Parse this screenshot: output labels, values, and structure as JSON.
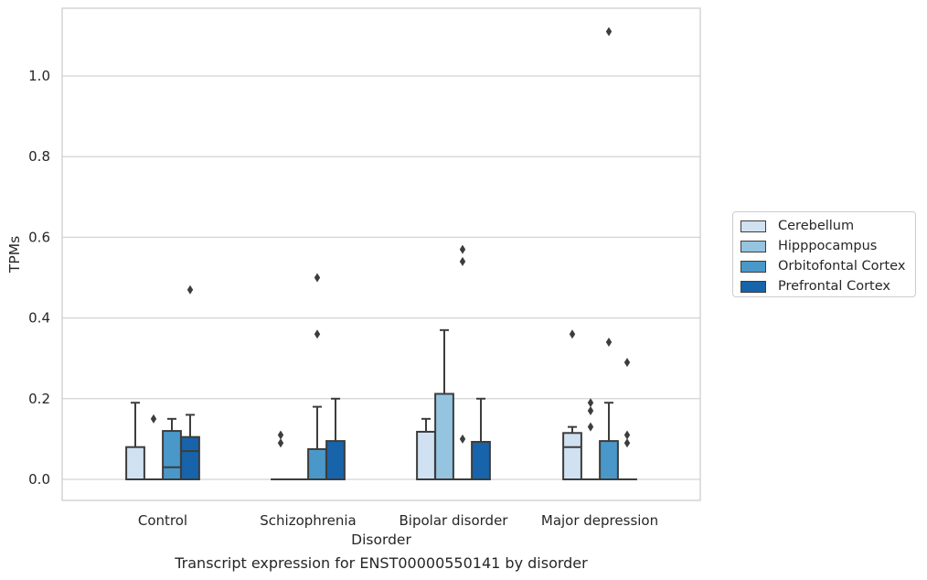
{
  "caption": "Transcript expression for ENST00000550141 by disorder",
  "chart_data": {
    "type": "box",
    "xlabel": "Disorder",
    "ylabel": "TPMs",
    "ylim": [
      -0.055,
      1.177
    ],
    "yticks": [
      "0.0",
      "0.2",
      "0.4",
      "0.6",
      "0.8",
      "1.0"
    ],
    "grid": "horizontal",
    "legend_position": "right",
    "categories": [
      "Control",
      "Schizophrenia",
      "Bipolar disorder",
      "Major depression"
    ],
    "series": [
      {
        "name": "Cerebellum",
        "color": "#d0e1f2",
        "boxes": [
          {
            "q1": 0,
            "median": 0,
            "q3": 0.08,
            "whisker_low": 0,
            "whisker_high": 0.19,
            "outliers": []
          },
          {
            "q1": 0,
            "median": 0,
            "q3": 0,
            "whisker_low": 0,
            "whisker_high": 0,
            "outliers": [
              0.09,
              0.11
            ]
          },
          {
            "q1": 0,
            "median": 0,
            "q3": 0.118,
            "whisker_low": 0,
            "whisker_high": 0.15,
            "outliers": []
          },
          {
            "q1": 0,
            "median": 0.08,
            "q3": 0.115,
            "whisker_low": 0,
            "whisker_high": 0.13,
            "outliers": [
              0.36
            ]
          }
        ]
      },
      {
        "name": "Hipppocampus",
        "color": "#94c4df",
        "boxes": [
          {
            "q1": 0,
            "median": 0,
            "q3": 0,
            "whisker_low": 0,
            "whisker_high": 0,
            "outliers": [
              0.15
            ]
          },
          {
            "q1": 0,
            "median": 0,
            "q3": 0,
            "whisker_low": 0,
            "whisker_high": 0,
            "outliers": []
          },
          {
            "q1": 0,
            "median": 0,
            "q3": 0.212,
            "whisker_low": 0,
            "whisker_high": 0.37,
            "outliers": []
          },
          {
            "q1": 0,
            "median": 0,
            "q3": 0,
            "whisker_low": 0,
            "whisker_high": 0,
            "outliers": [
              0.13,
              0.17,
              0.19
            ]
          }
        ]
      },
      {
        "name": "Orbitofontal Cortex",
        "color": "#4a98c9",
        "boxes": [
          {
            "q1": 0,
            "median": 0.03,
            "q3": 0.12,
            "whisker_low": 0,
            "whisker_high": 0.15,
            "outliers": []
          },
          {
            "q1": 0,
            "median": 0,
            "q3": 0.075,
            "whisker_low": 0,
            "whisker_high": 0.18,
            "outliers": [
              0.36,
              0.5
            ]
          },
          {
            "q1": 0,
            "median": 0,
            "q3": 0,
            "whisker_low": 0,
            "whisker_high": 0,
            "outliers": [
              0.1,
              0.54,
              0.57
            ]
          },
          {
            "q1": 0,
            "median": 0,
            "q3": 0.095,
            "whisker_low": 0,
            "whisker_high": 0.19,
            "outliers": [
              0.34,
              1.11
            ]
          }
        ]
      },
      {
        "name": "Prefrontal Cortex",
        "color": "#1764ab",
        "boxes": [
          {
            "q1": 0,
            "median": 0.07,
            "q3": 0.105,
            "whisker_low": 0,
            "whisker_high": 0.16,
            "outliers": [
              0.47
            ]
          },
          {
            "q1": 0,
            "median": 0,
            "q3": 0.095,
            "whisker_low": 0,
            "whisker_high": 0.2,
            "outliers": []
          },
          {
            "q1": 0,
            "median": 0,
            "q3": 0.093,
            "whisker_low": 0,
            "whisker_high": 0.2,
            "outliers": []
          },
          {
            "q1": 0,
            "median": 0,
            "q3": 0,
            "whisker_low": 0,
            "whisker_high": 0,
            "outliers": [
              0.09,
              0.11,
              0.29
            ]
          }
        ]
      }
    ]
  }
}
